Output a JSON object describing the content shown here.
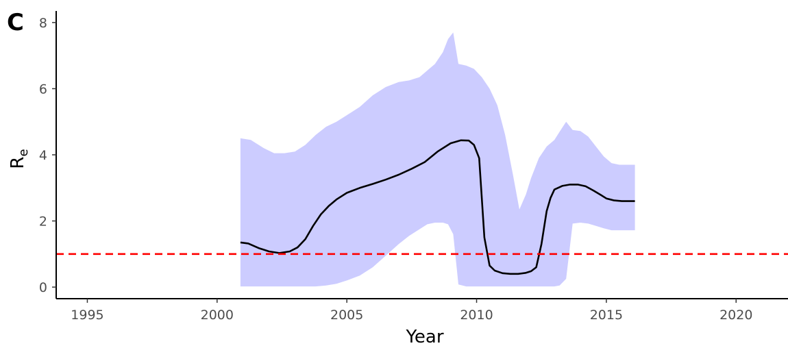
{
  "panel_label": "C",
  "colors": {
    "band": "#ccccff",
    "line": "#000000",
    "threshold": "#ff0000",
    "axis": "#000000"
  },
  "chart_data": {
    "type": "area",
    "xlabel": "Year",
    "ylabel": "R",
    "ylabel_subscript": "e",
    "xlim": [
      1993.8,
      2022.0
    ],
    "ylim": [
      -0.35,
      8.35
    ],
    "x_ticks": [
      1995,
      2000,
      2005,
      2010,
      2015,
      2020
    ],
    "y_ticks": [
      0,
      2,
      4,
      6,
      8
    ],
    "grid": false,
    "legend": "none",
    "reference_line": {
      "y": 1,
      "style": "dashed",
      "color": "#ff0000"
    },
    "series": [
      {
        "kind": "line",
        "x": [
          2000.9,
          2001.2,
          2001.6,
          2002.0,
          2002.4,
          2002.8,
          2003.1,
          2003.4,
          2003.7,
          2004.0,
          2004.3,
          2004.6,
          2005.0,
          2005.5,
          2006.0,
          2006.5,
          2007.0,
          2007.5,
          2008.0,
          2008.5,
          2009.0,
          2009.4,
          2009.7,
          2009.9,
          2010.1,
          2010.3,
          2010.5,
          2010.7,
          2011.0,
          2011.3,
          2011.6,
          2011.9,
          2012.1,
          2012.3,
          2012.5,
          2012.7,
          2012.85,
          2013.0,
          2013.3,
          2013.6,
          2013.9,
          2014.2,
          2014.5,
          2014.8,
          2015.0,
          2015.3,
          2015.6,
          2016.1
        ],
        "y": [
          1.35,
          1.32,
          1.18,
          1.08,
          1.03,
          1.08,
          1.2,
          1.45,
          1.85,
          2.2,
          2.45,
          2.65,
          2.85,
          3.0,
          3.12,
          3.25,
          3.4,
          3.58,
          3.78,
          4.1,
          4.35,
          4.44,
          4.43,
          4.3,
          3.9,
          1.5,
          0.65,
          0.5,
          0.42,
          0.4,
          0.4,
          0.43,
          0.48,
          0.6,
          1.3,
          2.3,
          2.7,
          2.95,
          3.06,
          3.1,
          3.1,
          3.05,
          2.92,
          2.78,
          2.68,
          2.62,
          2.6,
          2.6
        ]
      },
      {
        "kind": "band",
        "x": [
          2000.9,
          2001.3,
          2001.8,
          2002.2,
          2002.6,
          2003.0,
          2003.4,
          2003.8,
          2004.2,
          2004.6,
          2005.0,
          2005.5,
          2006.0,
          2006.5,
          2007.0,
          2007.4,
          2007.8,
          2008.1,
          2008.4,
          2008.7,
          2008.9,
          2009.1,
          2009.3,
          2009.6,
          2009.9,
          2010.2,
          2010.5,
          2010.8,
          2011.1,
          2011.4,
          2011.65,
          2011.9,
          2012.1,
          2012.4,
          2012.7,
          2013.0,
          2013.2,
          2013.45,
          2013.7,
          2014.0,
          2014.3,
          2014.6,
          2014.9,
          2015.2,
          2015.5,
          2016.1
        ],
        "lower": [
          0.02,
          0.02,
          0.02,
          0.02,
          0.02,
          0.02,
          0.02,
          0.02,
          0.05,
          0.1,
          0.2,
          0.35,
          0.6,
          0.95,
          1.3,
          1.55,
          1.75,
          1.9,
          1.95,
          1.95,
          1.9,
          1.6,
          0.08,
          0.02,
          0.02,
          0.02,
          0.02,
          0.02,
          0.02,
          0.02,
          0.02,
          0.02,
          0.02,
          0.02,
          0.02,
          0.02,
          0.05,
          0.25,
          1.92,
          1.95,
          1.92,
          1.85,
          1.78,
          1.72,
          1.72,
          1.72
        ],
        "upper": [
          4.5,
          4.45,
          4.2,
          4.05,
          4.05,
          4.1,
          4.3,
          4.6,
          4.85,
          5.0,
          5.2,
          5.45,
          5.8,
          6.05,
          6.2,
          6.25,
          6.35,
          6.55,
          6.75,
          7.1,
          7.5,
          7.7,
          6.75,
          6.7,
          6.6,
          6.35,
          6.0,
          5.5,
          4.6,
          3.4,
          2.35,
          2.8,
          3.3,
          3.9,
          4.25,
          4.45,
          4.7,
          5.0,
          4.75,
          4.72,
          4.55,
          4.25,
          3.95,
          3.75,
          3.7,
          3.7
        ]
      }
    ]
  }
}
